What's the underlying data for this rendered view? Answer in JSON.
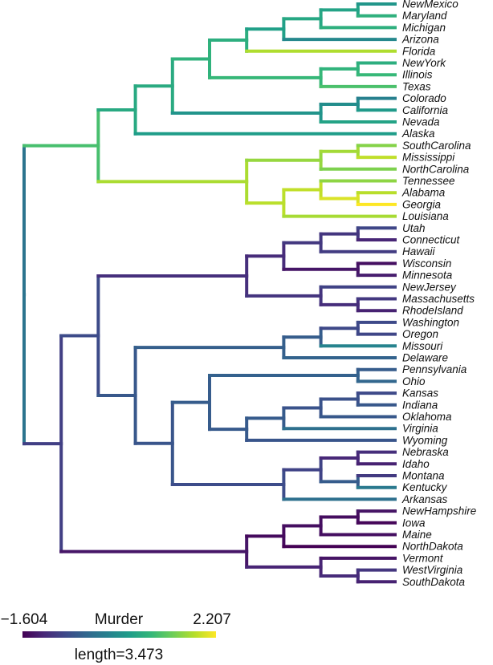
{
  "legend": {
    "variable": "Murder",
    "min_label": "−1.604",
    "max_label": "2.207",
    "length_label": "length=3.473",
    "min_value": -1.604,
    "max_value": 2.207,
    "palette": "viridis",
    "stops": [
      "#440154",
      "#482878",
      "#3e4989",
      "#31688e",
      "#26828e",
      "#1f9e89",
      "#35b779",
      "#6ece58",
      "#b5de2b",
      "#fde725"
    ]
  },
  "tree": {
    "tip_labels": [
      "NewMexico",
      "Maryland",
      "Michigan",
      "Arizona",
      "Florida",
      "NewYork",
      "Illinois",
      "Texas",
      "Colorado",
      "California",
      "Nevada",
      "Alaska",
      "SouthCarolina",
      "Mississippi",
      "NorthCarolina",
      "Tennessee",
      "Alabama",
      "Georgia",
      "Louisiana",
      "Utah",
      "Connecticut",
      "Hawaii",
      "Wisconsin",
      "Minnesota",
      "NewJersey",
      "Massachusetts",
      "RhodeIsland",
      "Washington",
      "Oregon",
      "Missouri",
      "Delaware",
      "Pennsylvania",
      "Ohio",
      "Kansas",
      "Indiana",
      "Oklahoma",
      "Virginia",
      "Wyoming",
      "Nebraska",
      "Idaho",
      "Montana",
      "Kentucky",
      "Arkansas",
      "NewHampshire",
      "Iowa",
      "Maine",
      "NorthDakota",
      "Vermont",
      "WestVirginia",
      "SouthDakota"
    ],
    "tip_values": [
      0.39,
      0.82,
      0.8,
      0.18,
      1.75,
      0.78,
      0.95,
      1.1,
      0.05,
      0.45,
      0.6,
      0.5,
      1.5,
      1.85,
      1.45,
      1.55,
      1.8,
      2.207,
      1.7,
      -0.8,
      -1.2,
      -0.92,
      -1.45,
      -1.3,
      -0.85,
      -0.97,
      -1.25,
      -0.75,
      -0.8,
      0.1,
      -0.4,
      -0.5,
      -0.35,
      -0.75,
      -0.55,
      -0.55,
      -0.2,
      -0.6,
      -1.1,
      -1.25,
      -0.95,
      -0.05,
      -0.2,
      -1.4,
      -1.55,
      -1.45,
      -1.604,
      -1.4,
      -1.0,
      -1.25
    ],
    "newick": "(((((((((NewMexico,Maryland),Michigan),Arizona),Florida),((NewYork,Illinois),Texas)),((Colorado,California),Nevada)),Alaska),(((SouthCarolina,Mississippi),NorthCarolina),((Tennessee,(Alabama,Georgia)),Louisiana))),((((((Utah,Connecticut),Hawaii),(Wisconsin,Minnesota)),(NewJersey,(Massachusetts,RhodeIsland))),((((Washington,Oregon),Missouri),Delaware),(((Pennsylvania,Ohio),((((Kansas,Indiana),Oklahoma),Virginia),Wyoming)),(((Nebraska,Idaho),(Montana,Kentucky)),Arkansas)))),((((NewHampshire,Iowa),Maine),NorthDakota),(Vermont,(WestVirginia,SouthDakota)))))"
  }
}
